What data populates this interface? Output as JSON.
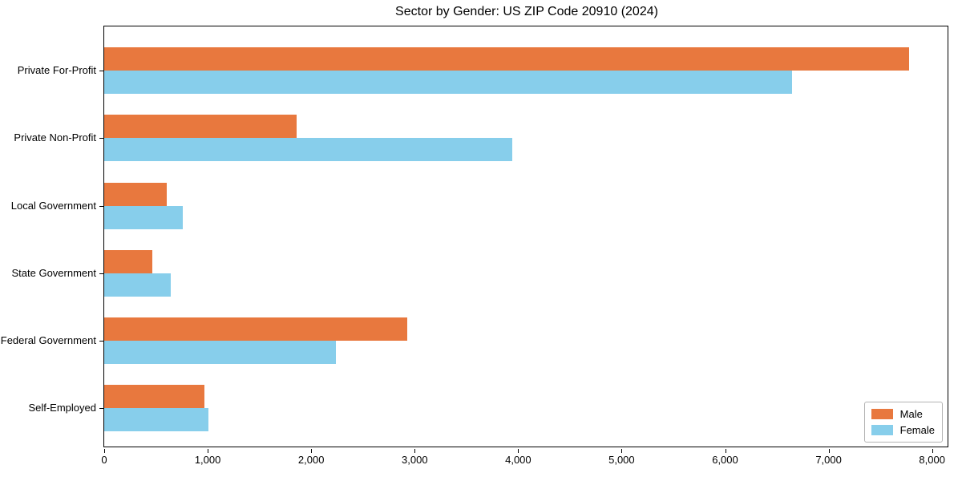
{
  "chart_data": {
    "type": "bar",
    "orientation": "horizontal",
    "title": "Sector by Gender: US ZIP Code 20910 (2024)",
    "xlabel": "",
    "ylabel": "",
    "categories": [
      "Private For-Profit",
      "Private Non-Profit",
      "Local Government",
      "State Government",
      "Federal Government",
      "Self-Employed"
    ],
    "series": [
      {
        "name": "Male",
        "color": "#e8783e",
        "values": [
          7780,
          1860,
          600,
          465,
          2925,
          965
        ]
      },
      {
        "name": "Female",
        "color": "#87ceeb",
        "values": [
          6650,
          3940,
          760,
          640,
          2235,
          1010
        ]
      }
    ],
    "xlim": [
      0,
      8165
    ],
    "x_ticks": [
      0,
      1000,
      2000,
      3000,
      4000,
      5000,
      6000,
      7000,
      8000
    ],
    "x_tick_labels": [
      "0",
      "1,000",
      "2,000",
      "3,000",
      "4,000",
      "5,000",
      "6,000",
      "7,000",
      "8,000"
    ],
    "grid": false,
    "legend": {
      "position": "lower right"
    }
  }
}
